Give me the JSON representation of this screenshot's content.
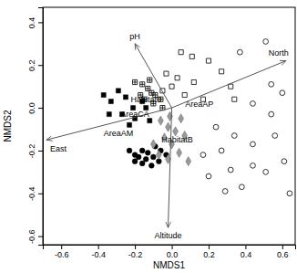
{
  "chart_data": {
    "type": "scatter",
    "xlabel": "NMDS1",
    "ylabel": "NMDS2",
    "xlim": [
      -0.7,
      0.67
    ],
    "ylim": [
      -0.64,
      0.47
    ],
    "xticks": [
      -0.6,
      -0.4,
      -0.2,
      {
        "value": 0,
        "label": "0.0"
      },
      0.2,
      0.4,
      0.6
    ],
    "yticks": [
      -0.6,
      -0.4,
      -0.2,
      {
        "value": 0,
        "label": "0.0"
      },
      0.2,
      0.4
    ],
    "series": [
      {
        "color": "#000000",
        "marker": "filled-square",
        "x": [
          -0.37,
          -0.33,
          -0.29,
          -0.25,
          -0.21,
          -0.16,
          -0.14,
          -0.2,
          -0.27,
          -0.23,
          -0.34,
          -0.12
        ],
        "values": [
          0.06,
          0.03,
          0.08,
          0.05,
          0.0,
          0.03,
          0.0,
          -0.05,
          -0.03,
          -0.08,
          -0.03,
          -0.06
        ]
      },
      {
        "color": "#000000",
        "marker": "filled-circle",
        "x": [
          -0.23,
          -0.2,
          -0.16,
          -0.13,
          -0.1,
          -0.06,
          -0.03,
          -0.2,
          -0.16,
          -0.11,
          -0.07,
          -0.14,
          -0.18,
          -0.09
        ],
        "values": [
          -0.2,
          -0.22,
          -0.2,
          -0.21,
          -0.23,
          -0.2,
          -0.22,
          -0.25,
          -0.26,
          -0.27,
          -0.25,
          -0.24,
          -0.23,
          -0.18
        ]
      },
      {
        "color": "#000000",
        "marker": "open-square",
        "x": [
          0.05,
          0.11,
          0.2,
          0.27,
          -0.03,
          0.03,
          0.12,
          0.32,
          -0.05,
          0.07,
          0.17,
          0.34,
          0.0
        ],
        "values": [
          0.26,
          0.24,
          0.22,
          0.17,
          0.16,
          0.14,
          0.12,
          0.1,
          0.08,
          0.06,
          0.04,
          0.04,
          0.1
        ]
      },
      {
        "color": "#000000",
        "marker": "crossed-square",
        "x": [
          -0.2,
          -0.16,
          -0.13,
          -0.11,
          -0.09,
          -0.06,
          -0.15,
          -0.1,
          -0.17,
          -0.05,
          -0.12
        ],
        "values": [
          0.12,
          0.11,
          0.09,
          0.07,
          0.06,
          0.04,
          0.04,
          0.02,
          0.06,
          0.0,
          0.13
        ]
      },
      {
        "color": "#999999",
        "marker": "diamond",
        "x": [
          -0.06,
          -0.02,
          0.02,
          -0.04,
          0.0,
          0.04,
          -0.07,
          -0.02,
          0.07,
          -0.1,
          0.05,
          0.09,
          -0.01
        ],
        "values": [
          -0.06,
          -0.09,
          -0.11,
          -0.14,
          -0.17,
          -0.21,
          -0.22,
          -0.24,
          -0.13,
          -0.17,
          -0.05,
          -0.25,
          -0.04
        ]
      },
      {
        "color": "#000000",
        "marker": "open-circle",
        "x": [
          0.51,
          0.37,
          0.54,
          0.44,
          0.54,
          0.6,
          0.24,
          0.34,
          0.27,
          0.44,
          0.56,
          0.61,
          0.44,
          0.32,
          0.51,
          0.64,
          0.29,
          0.38,
          0.2,
          0.17
        ],
        "values": [
          0.31,
          0.26,
          0.11,
          0.02,
          -0.03,
          0.07,
          -0.09,
          -0.13,
          -0.2,
          -0.17,
          -0.13,
          -0.25,
          -0.27,
          -0.29,
          -0.3,
          -0.4,
          -0.39,
          -0.37,
          -0.32,
          -0.22
        ]
      }
    ],
    "vectors": [
      {
        "label": "pH",
        "x": -0.2,
        "y": 0.3
      },
      {
        "label": "North",
        "x": 0.62,
        "y": 0.22
      },
      {
        "label": "East",
        "x": -0.68,
        "y": -0.15
      },
      {
        "label": "Altitude",
        "x": -0.02,
        "y": -0.56
      }
    ],
    "labels": [
      {
        "text": "Habitat0",
        "x": -0.14,
        "y": 0.04
      },
      {
        "text": "AreaCA",
        "x": -0.2,
        "y": -0.03
      },
      {
        "text": "AreaAP",
        "x": 0.15,
        "y": 0.02
      },
      {
        "text": "AreaAM",
        "x": -0.29,
        "y": -0.12
      },
      {
        "text": "HabitatB",
        "x": 0.03,
        "y": -0.15
      }
    ]
  }
}
